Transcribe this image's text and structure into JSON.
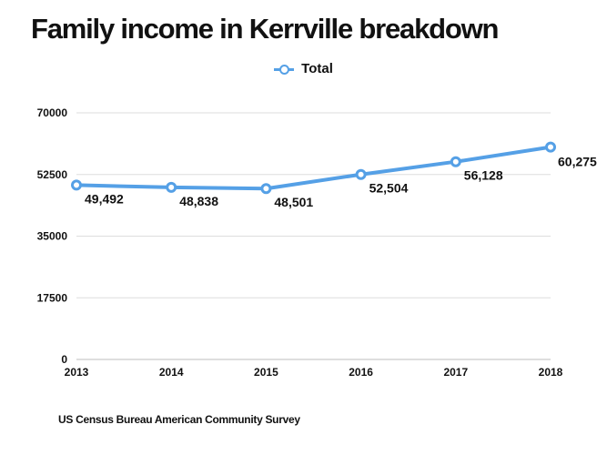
{
  "chart_data": {
    "type": "line",
    "title": "Family income in Kerrville breakdown",
    "categories": [
      "2013",
      "2014",
      "2015",
      "2016",
      "2017",
      "2018"
    ],
    "series": [
      {
        "name": "Total",
        "values": [
          49492,
          48838,
          48501,
          52504,
          56128,
          60275
        ],
        "labels": [
          "49,492",
          "48,838",
          "48,501",
          "52,504",
          "56,128",
          "60,275"
        ],
        "color": "#55a0e6"
      }
    ],
    "yticks": [
      "0",
      "17500",
      "35000",
      "52500",
      "70000"
    ],
    "ylim": [
      0,
      70000
    ],
    "xlabel": "",
    "ylabel": "",
    "grid": true,
    "legend_position": "top-center",
    "source": "US Census Bureau American Community Survey"
  }
}
